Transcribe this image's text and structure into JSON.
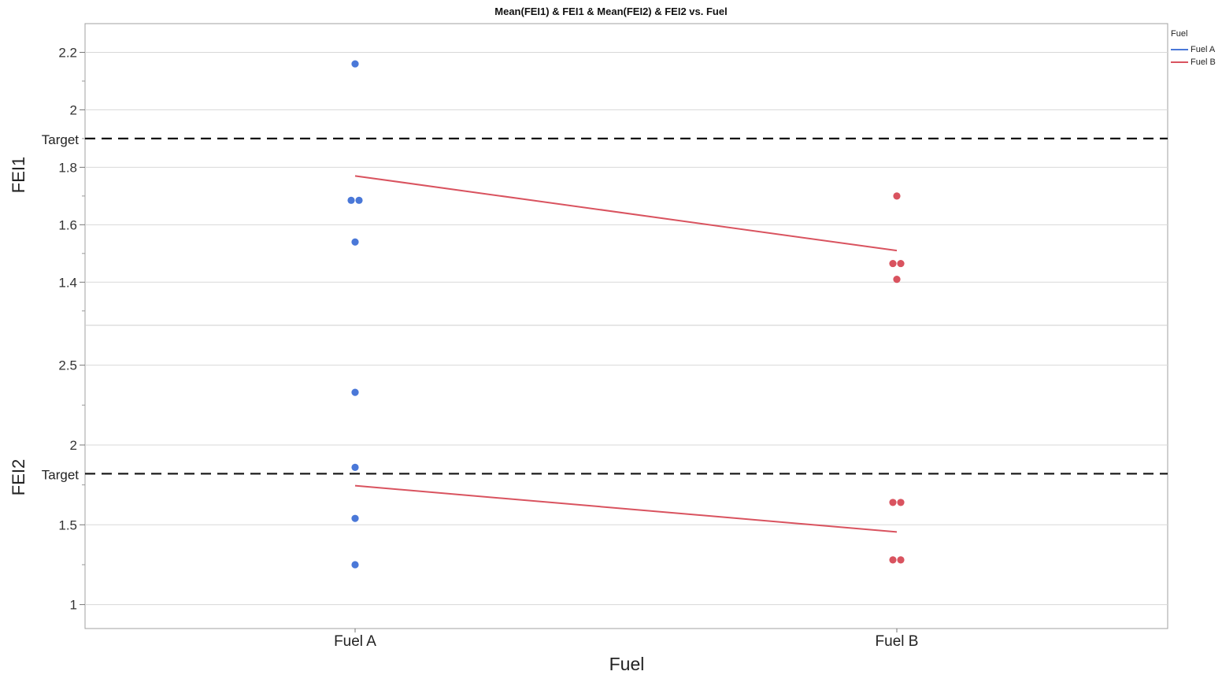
{
  "chart_data": {
    "type": "scatter",
    "title": "Mean(FEI1) & FEI1 & Mean(FEI2) & FEI2 vs. Fuel",
    "xlabel": "Fuel",
    "categories": [
      "Fuel A",
      "Fuel B"
    ],
    "legend": {
      "title": "Fuel",
      "placement": "top-right",
      "entries": [
        {
          "name": "Fuel A",
          "color": "#4a78d8"
        },
        {
          "name": "Fuel B",
          "color": "#d9535f"
        }
      ]
    },
    "grid": true,
    "panels": [
      {
        "ylabel": "FEI1",
        "ylim": [
          1.25,
          2.3
        ],
        "yticks": [
          1.4,
          1.6,
          1.8,
          2,
          2.2
        ],
        "tick_labels": [
          "1.4",
          "1.6",
          "1.8",
          "2",
          "2.2"
        ],
        "reference_line": {
          "label": "Target",
          "value": 1.9
        },
        "points": [
          {
            "category": "Fuel A",
            "values": [
              2.16,
              1.685,
              1.685,
              1.54
            ]
          },
          {
            "category": "Fuel B",
            "values": [
              1.7,
              1.465,
              1.465,
              1.41
            ]
          }
        ],
        "mean_line": {
          "Fuel A": 1.77,
          "Fuel B": 1.51
        }
      },
      {
        "ylabel": "FEI2",
        "ylim": [
          0.85,
          2.75
        ],
        "yticks": [
          1,
          1.5,
          2,
          2.5
        ],
        "tick_labels": [
          "1",
          "1.5",
          "2",
          "2.5"
        ],
        "reference_line": {
          "label": "Target",
          "value": 1.82
        },
        "points": [
          {
            "category": "Fuel A",
            "values": [
              2.33,
              1.86,
              1.54,
              1.25
            ]
          },
          {
            "category": "Fuel B",
            "values": [
              1.64,
              1.64,
              1.28,
              1.28
            ]
          }
        ],
        "mean_line": {
          "Fuel A": 1.745,
          "Fuel B": 1.455
        }
      }
    ]
  }
}
